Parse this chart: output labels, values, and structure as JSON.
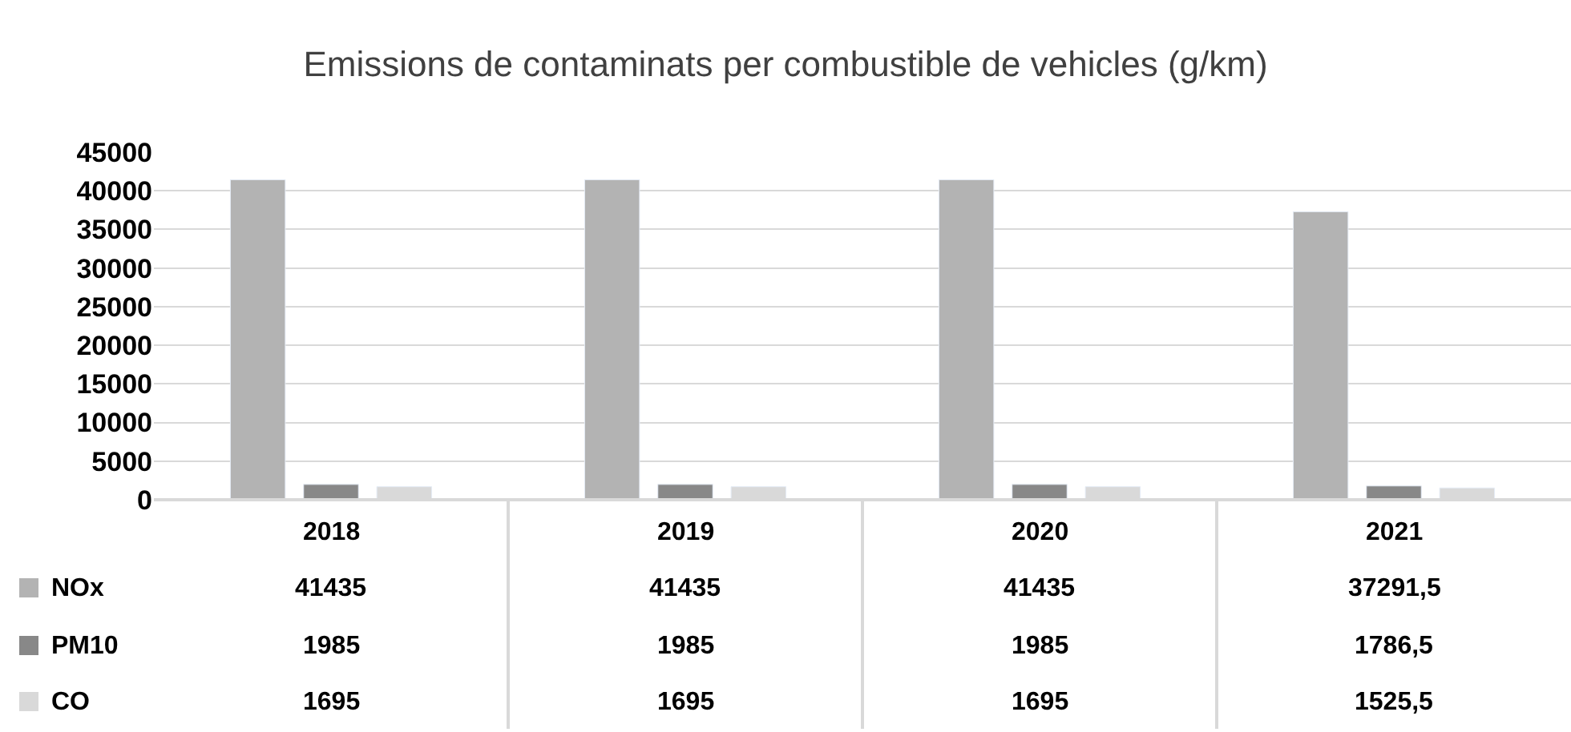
{
  "chart_data": {
    "type": "bar",
    "title": "Emissions de contaminats per combustible de vehicles (g/km)",
    "categories": [
      "2018",
      "2019",
      "2020",
      "2021"
    ],
    "series": [
      {
        "name": "NOx",
        "color": "#b3b3b3",
        "values": [
          41435,
          41435,
          41435,
          37291.5
        ],
        "value_labels": [
          "41435",
          "41435",
          "41435",
          "37291,5"
        ]
      },
      {
        "name": "PM10",
        "color": "#888888",
        "values": [
          1985,
          1985,
          1985,
          1786.5
        ],
        "value_labels": [
          "1985",
          "1985",
          "1985",
          "1786,5"
        ]
      },
      {
        "name": "CO",
        "color": "#d9d9d9",
        "values": [
          1695,
          1695,
          1695,
          1525.5
        ],
        "value_labels": [
          "1695",
          "1695",
          "1695",
          "1525,5"
        ]
      }
    ],
    "ylim": [
      0,
      45000
    ],
    "yticks": [
      0,
      5000,
      10000,
      15000,
      20000,
      25000,
      30000,
      35000,
      40000,
      45000
    ],
    "grid": "y",
    "legend": "bottom left"
  }
}
